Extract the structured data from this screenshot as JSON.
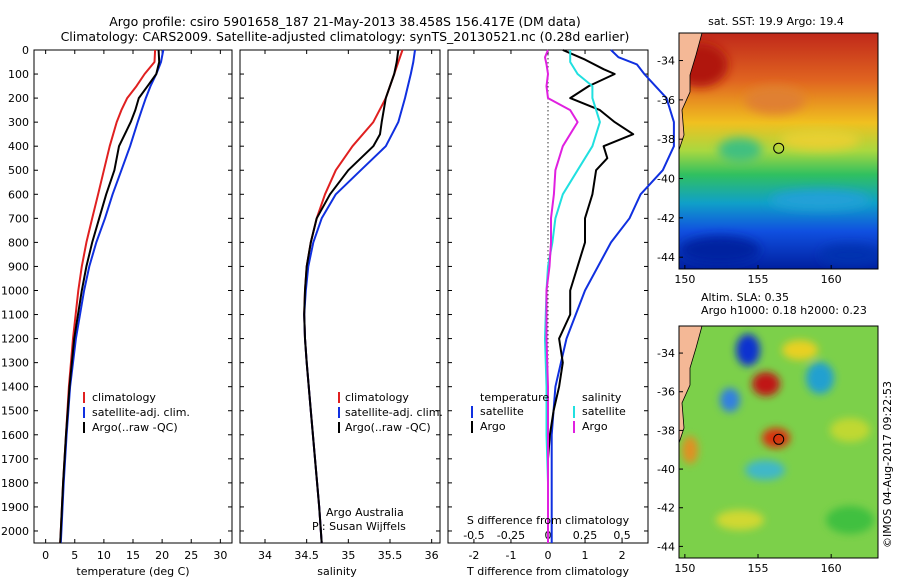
{
  "header": {
    "title_line1": "Argo profile: csiro 5901658_187 21-May-2013 38.458S 156.417E (DM data)",
    "title_line2": "Climatology: CARS2009. Satellite-adjusted climatology: synTS_20130521.nc (0.28d earlier)"
  },
  "colors": {
    "climatology": "#e02020",
    "satellite": "#1030e0",
    "argo": "#000000",
    "satellite_s": "#20e0e0",
    "argo_s": "#e020e0",
    "land": "#f4b896"
  },
  "chart_data": [
    {
      "type": "line",
      "xlabel": "temperature (deg C)",
      "ylabel": "",
      "xlim": [
        -2,
        32
      ],
      "ylim": [
        2050,
        0
      ],
      "xticks": [
        0,
        5,
        10,
        15,
        20,
        25,
        30
      ],
      "yticks": [
        0,
        100,
        200,
        300,
        400,
        500,
        600,
        700,
        800,
        900,
        1000,
        1100,
        1200,
        1300,
        1400,
        1500,
        1600,
        1700,
        1800,
        1900,
        2000
      ],
      "legend": [
        "climatology",
        "satellite-adj. clim.",
        "Argo(..raw -QC)"
      ],
      "series": [
        {
          "name": "climatology",
          "depth": [
            0,
            50,
            100,
            150,
            200,
            250,
            300,
            400,
            500,
            600,
            700,
            800,
            900,
            1000,
            1200,
            1400,
            1600,
            1800,
            2000,
            2050
          ],
          "values": [
            18.8,
            18.7,
            17.0,
            15.6,
            14.0,
            13.0,
            12.2,
            11.0,
            10.0,
            9.0,
            8.0,
            7.0,
            6.2,
            5.6,
            4.7,
            4.0,
            3.5,
            3.0,
            2.6,
            2.5
          ]
        },
        {
          "name": "satellite-adj. clim.",
          "depth": [
            0,
            50,
            100,
            150,
            200,
            250,
            300,
            400,
            500,
            600,
            700,
            800,
            900,
            1000,
            1200,
            1400,
            1600,
            1800,
            2000,
            2050
          ],
          "values": [
            20.2,
            19.8,
            19.0,
            18.0,
            17.2,
            16.5,
            15.8,
            14.5,
            13.0,
            11.5,
            10.2,
            8.7,
            7.5,
            6.6,
            5.2,
            4.2,
            3.6,
            3.1,
            2.7,
            2.6
          ]
        },
        {
          "name": "Argo(..raw -QC)",
          "depth": [
            0,
            50,
            100,
            150,
            200,
            250,
            300,
            400,
            500,
            600,
            700,
            800,
            900,
            1000,
            1200,
            1400,
            1600,
            1800,
            2000,
            2050
          ],
          "values": [
            19.4,
            19.5,
            19.0,
            17.5,
            16.0,
            15.4,
            14.6,
            12.6,
            11.8,
            10.4,
            9.2,
            8.0,
            7.0,
            6.2,
            4.9,
            4.1,
            3.5,
            3.0,
            2.6,
            2.5
          ]
        }
      ]
    },
    {
      "type": "line",
      "xlabel": "salinity",
      "ylabel": "",
      "xlim": [
        33.7,
        36.1
      ],
      "ylim": [
        2050,
        0
      ],
      "xticks": [
        34,
        34.5,
        35,
        35.5,
        36
      ],
      "xtick_labels": [
        "34",
        "34.5",
        "35",
        "35.5",
        "36"
      ],
      "legend": [
        "climatology",
        "satellite-adj. clim.",
        "Argo(..raw -QC)"
      ],
      "annotation_line1": "Argo Australia",
      "annotation_line2": "PI: Susan Wijffels",
      "series": [
        {
          "name": "climatology",
          "depth": [
            0,
            50,
            100,
            200,
            300,
            400,
            500,
            600,
            700,
            800,
            900,
            1000,
            1100,
            1200,
            1300,
            1500,
            1700,
            1900,
            2050
          ],
          "values": [
            35.65,
            35.6,
            35.55,
            35.45,
            35.3,
            35.05,
            34.85,
            34.72,
            34.62,
            34.55,
            34.5,
            34.48,
            34.47,
            34.48,
            34.5,
            34.55,
            34.6,
            34.65,
            34.68
          ]
        },
        {
          "name": "satellite-adj. clim.",
          "depth": [
            0,
            50,
            100,
            200,
            300,
            400,
            500,
            600,
            700,
            800,
            900,
            1000,
            1100,
            1200,
            1300,
            1500,
            1700,
            1900,
            2050
          ],
          "values": [
            35.8,
            35.78,
            35.75,
            35.68,
            35.6,
            35.45,
            35.15,
            34.85,
            34.68,
            34.58,
            34.52,
            34.49,
            34.47,
            34.48,
            34.5,
            34.55,
            34.6,
            34.65,
            34.68
          ]
        },
        {
          "name": "Argo(..raw -QC)",
          "depth": [
            0,
            50,
            100,
            200,
            300,
            350,
            400,
            500,
            600,
            700,
            800,
            900,
            1000,
            1100,
            1200,
            1300,
            1500,
            1700,
            1900,
            2050
          ],
          "values": [
            35.6,
            35.58,
            35.55,
            35.45,
            35.4,
            35.38,
            35.3,
            35.0,
            34.78,
            34.62,
            34.55,
            34.5,
            34.48,
            34.47,
            34.48,
            34.5,
            34.55,
            34.6,
            34.65,
            34.68
          ]
        }
      ]
    },
    {
      "type": "line",
      "xlabel": "T difference from climatology",
      "x2label": "S difference from climatology",
      "xlim": [
        -2.7,
        2.7
      ],
      "x2lim": [
        -0.675,
        0.675
      ],
      "ylim": [
        2050,
        0
      ],
      "xticks": [
        -2,
        -1,
        0,
        1,
        2
      ],
      "x2ticks": [
        -0.5,
        -0.25,
        0,
        0.25,
        0.5
      ],
      "x2tick_labels": [
        "-0.5",
        "-0.25",
        "0",
        "0.25",
        "0.5"
      ],
      "legend_t_title": "temperature",
      "legend_s_title": "salinity",
      "legend_t": [
        "satellite",
        "Argo"
      ],
      "legend_s": [
        "satellite",
        "Argo"
      ],
      "series": [
        {
          "name": "satellite",
          "axis": "T",
          "depth": [
            0,
            30,
            60,
            100,
            150,
            200,
            300,
            400,
            500,
            600,
            700,
            800,
            1000,
            1200,
            1400,
            1600,
            1800,
            2000,
            2050
          ],
          "values": [
            1.7,
            1.9,
            2.4,
            2.6,
            2.9,
            3.2,
            3.4,
            3.4,
            3.1,
            2.5,
            2.2,
            1.7,
            1.0,
            0.5,
            0.2,
            0.1,
            0.1,
            0.1,
            0.1
          ]
        },
        {
          "name": "Argo",
          "axis": "T",
          "depth": [
            0,
            40,
            80,
            100,
            150,
            200,
            250,
            300,
            350,
            400,
            450,
            500,
            600,
            700,
            800,
            900,
            1000,
            1100,
            1200,
            1300,
            1400,
            1500,
            1600,
            1700,
            1800,
            1900,
            2000,
            2050
          ],
          "values": [
            0.4,
            1.0,
            1.5,
            1.8,
            1.1,
            0.6,
            1.4,
            1.8,
            2.3,
            1.5,
            1.6,
            1.3,
            1.2,
            1.0,
            1.0,
            0.8,
            0.6,
            0.6,
            0.3,
            0.4,
            0.3,
            0.15,
            0.05,
            0.0,
            0.0,
            0.0,
            0.0,
            0.0
          ]
        },
        {
          "name": "satellite",
          "axis": "S",
          "depth": [
            0,
            50,
            100,
            150,
            200,
            300,
            400,
            500,
            600,
            700,
            800,
            900,
            1000,
            1200,
            1400,
            1600,
            1800,
            2000,
            2050
          ],
          "values": [
            0.15,
            0.15,
            0.2,
            0.3,
            0.3,
            0.35,
            0.3,
            0.2,
            0.1,
            0.05,
            0.03,
            0.0,
            -0.01,
            -0.02,
            -0.01,
            -0.01,
            0.0,
            0.0,
            0.0
          ]
        },
        {
          "name": "Argo",
          "axis": "S",
          "depth": [
            0,
            30,
            60,
            100,
            150,
            200,
            250,
            300,
            400,
            500,
            600,
            700,
            800,
            900,
            1000,
            1200,
            1400,
            1600,
            1800,
            2000,
            2050
          ],
          "values": [
            0.0,
            -0.02,
            -0.01,
            0.0,
            -0.01,
            0.0,
            0.15,
            0.2,
            0.1,
            0.05,
            0.04,
            0.02,
            0.02,
            0.01,
            -0.01,
            -0.01,
            0.0,
            0.0,
            0.0,
            0.0,
            0.0
          ]
        }
      ]
    },
    {
      "type": "heatmap",
      "title": "sat. SST: 19.9 Argo: 19.4",
      "xlim": [
        149.6,
        163.2
      ],
      "ylim": [
        -44.6,
        -32.6
      ],
      "xticks": [
        150,
        155,
        160
      ],
      "yticks": [
        -34,
        -36,
        -38,
        -40,
        -42,
        -44
      ],
      "argo_position": [
        156.417,
        -38.458
      ]
    },
    {
      "type": "heatmap",
      "title_line1": "Altim. SLA: 0.35",
      "title_line2": "Argo h1000: 0.18 h2000: 0.23",
      "xlim": [
        149.6,
        163.2
      ],
      "ylim": [
        -44.6,
        -32.6
      ],
      "xticks": [
        150,
        155,
        160
      ],
      "yticks": [
        -34,
        -36,
        -38,
        -40,
        -42,
        -44
      ],
      "argo_position": [
        156.417,
        -38.458
      ]
    }
  ],
  "footer": {
    "stamp": "©IMOS 04-Aug-2017 09:22:53"
  }
}
